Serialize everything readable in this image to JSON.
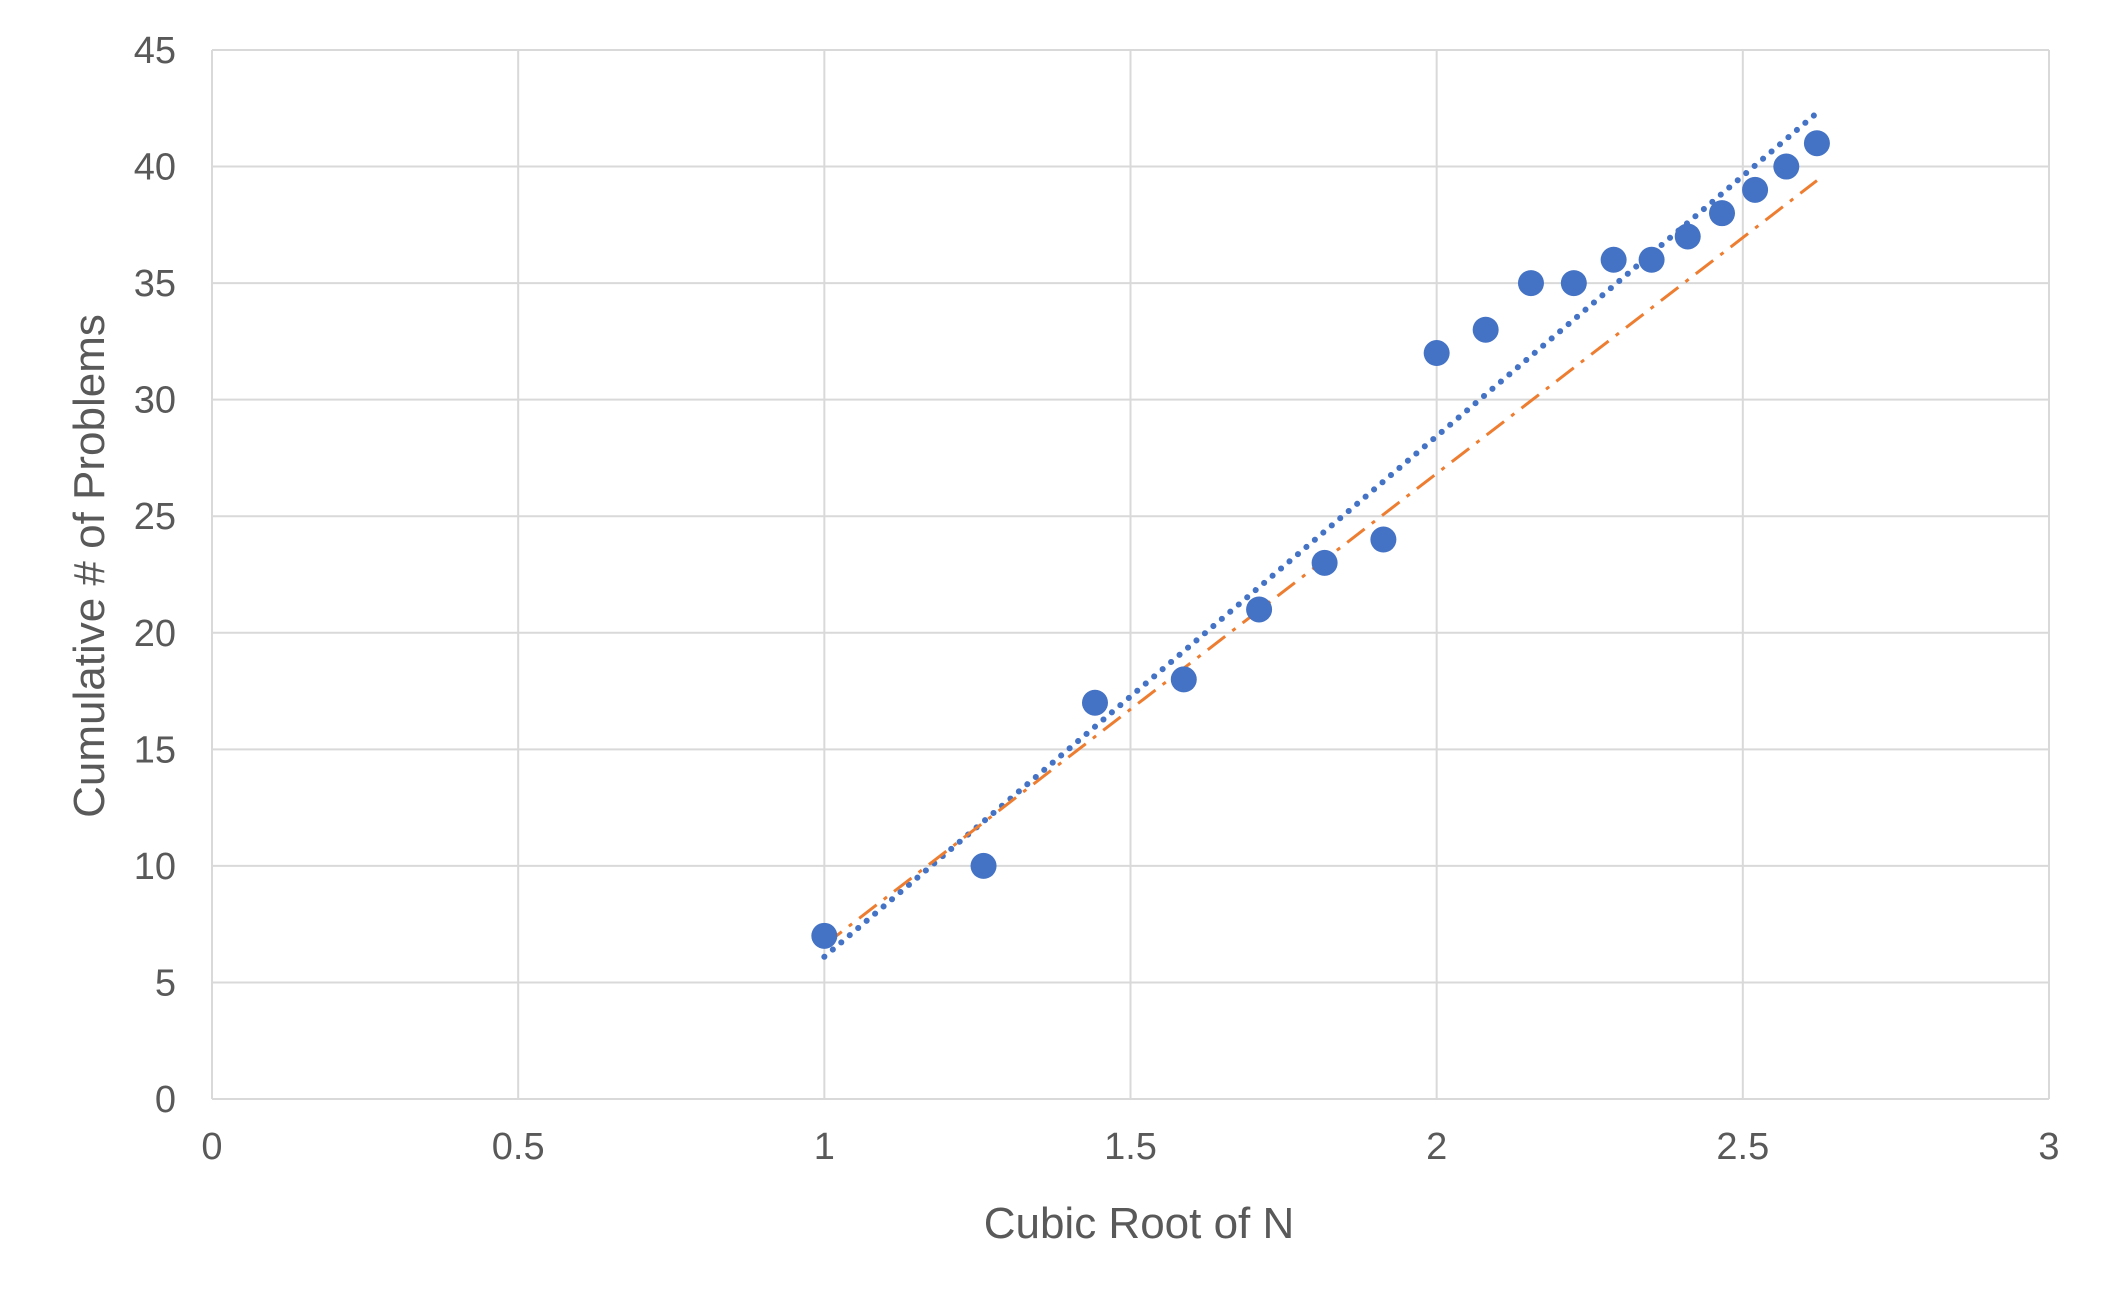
{
  "chart_data": {
    "type": "scatter",
    "title": "",
    "xlabel": "Cubic Root of N",
    "ylabel": "Cumulative # of Problems",
    "xlim": [
      0,
      3
    ],
    "ylim": [
      0,
      45
    ],
    "x_ticks": [
      "0",
      "0.5",
      "1",
      "1.5",
      "2",
      "2.5",
      "3"
    ],
    "y_ticks": [
      "0",
      "5",
      "10",
      "15",
      "20",
      "25",
      "30",
      "35",
      "40",
      "45"
    ],
    "grid": true,
    "legend": "none",
    "colors": {
      "points": "#4472C4",
      "trend_dotted": "#4472C4",
      "trend_dashdot": "#ED7D31",
      "grid": "#D9D9D9",
      "text": "#595959"
    },
    "series": [
      {
        "type": "scatter",
        "x": [
          1.0,
          1.26,
          1.442,
          1.587,
          1.71,
          1.817,
          1.913,
          2.0,
          2.08,
          2.154,
          2.224,
          2.289,
          2.351,
          2.41,
          2.466,
          2.52,
          2.571,
          2.621
        ],
        "y": [
          7,
          10,
          17,
          18,
          21,
          23,
          24,
          32,
          33,
          35,
          35,
          36,
          36,
          37,
          38,
          39,
          40,
          41
        ]
      }
    ],
    "trendlines": [
      {
        "style": "dotted",
        "x": [
          1.0,
          2.621
        ],
        "y": [
          6.1,
          42.3
        ]
      },
      {
        "style": "dash-dot",
        "x": [
          1.0,
          2.621
        ],
        "y": [
          6.6,
          39.4
        ]
      }
    ]
  }
}
